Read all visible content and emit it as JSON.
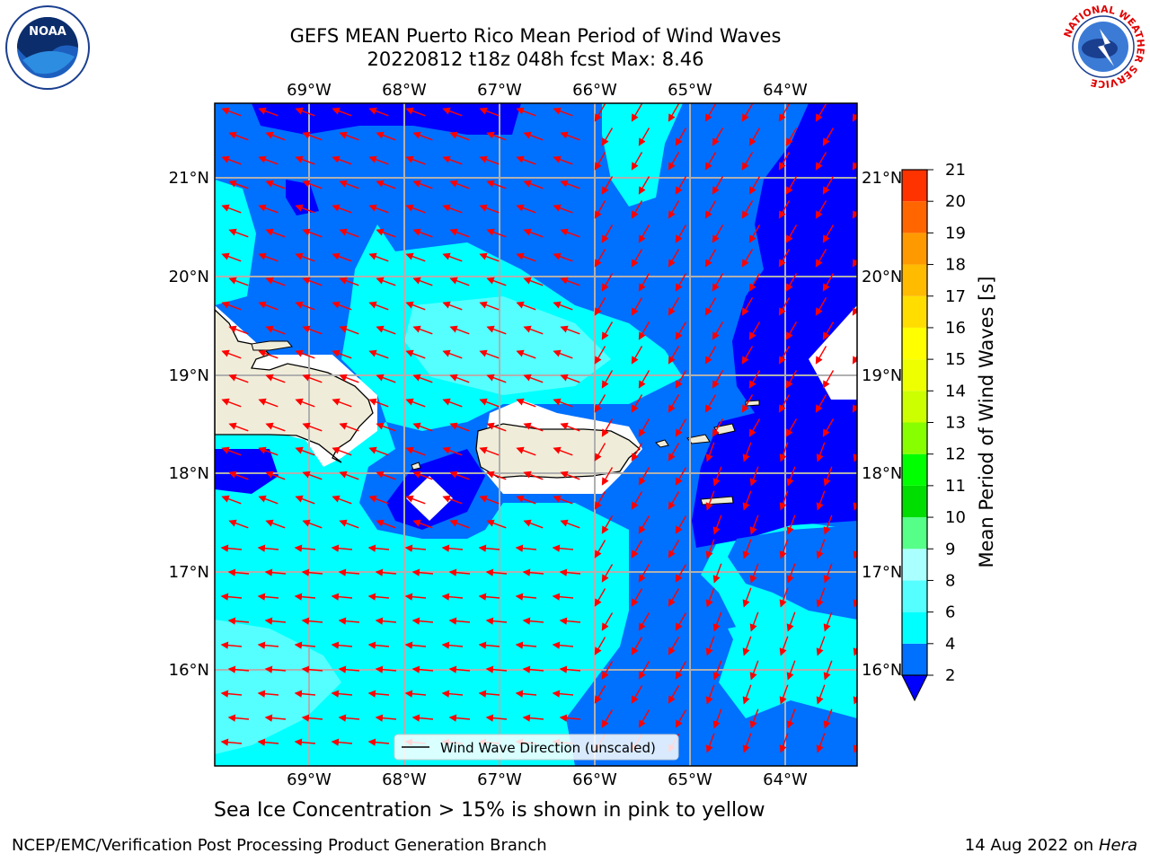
{
  "header": {
    "title_line1": "GEFS MEAN Puerto Rico Mean Period of Wind Waves",
    "title_line2": "20220812 t18z 048h fcst   Max: 8.46"
  },
  "map": {
    "lon_ticks": [
      "69°W",
      "68°W",
      "67°W",
      "66°W",
      "65°W",
      "64°W"
    ],
    "lat_ticks": [
      "21°N",
      "20°N",
      "19°N",
      "18°N",
      "17°N",
      "16°N"
    ],
    "legend_label": "Wind Wave Direction (unscaled)",
    "colors": {
      "land": "#efedd9",
      "blue_2_4": "#0066ff",
      "deep_blue": "#0000ff",
      "cyan_4_6": "#00ffff",
      "cyan_6_8": "#55ffff",
      "arrow": "#ff0000"
    }
  },
  "colorbar": {
    "label": "Mean Period of Wind Waves [s]",
    "ticks": [
      "2",
      "4",
      "6",
      "8",
      "9",
      "10",
      "11",
      "12",
      "13",
      "14",
      "15",
      "16",
      "17",
      "18",
      "19",
      "20",
      "21"
    ],
    "colors": [
      "#0070ff",
      "#00ffff",
      "#55ffff",
      "#aaffff",
      "#55ff88",
      "#00dd00",
      "#00ff00",
      "#88ff00",
      "#ccff00",
      "#eeff00",
      "#ffff00",
      "#ffdd00",
      "#ffbb00",
      "#ff9900",
      "#ff6600",
      "#ff3300",
      "#ff0000"
    ],
    "extend_color": "#0000ff"
  },
  "notes": {
    "sea_ice": "Sea Ice Concentration > 15% is shown in pink to yellow"
  },
  "footer": {
    "left": "NCEP/EMC/Verification Post Processing Product Generation Branch",
    "date": "14 Aug 2022 on",
    "machine": "Hera"
  },
  "logos": {
    "noaa": "NOAA",
    "nws": "NATIONAL WEATHER SERVICE"
  }
}
